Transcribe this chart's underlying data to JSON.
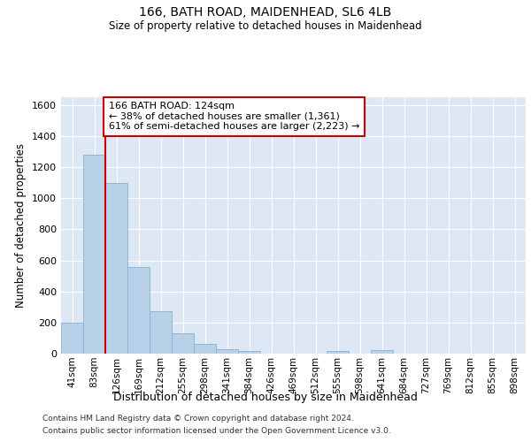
{
  "title1": "166, BATH ROAD, MAIDENHEAD, SL6 4LB",
  "title2": "Size of property relative to detached houses in Maidenhead",
  "xlabel": "Distribution of detached houses by size in Maidenhead",
  "ylabel": "Number of detached properties",
  "categories": [
    "41sqm",
    "83sqm",
    "126sqm",
    "169sqm",
    "212sqm",
    "255sqm",
    "298sqm",
    "341sqm",
    "384sqm",
    "426sqm",
    "469sqm",
    "512sqm",
    "555sqm",
    "598sqm",
    "641sqm",
    "684sqm",
    "727sqm",
    "769sqm",
    "812sqm",
    "855sqm",
    "898sqm"
  ],
  "values": [
    200,
    1280,
    1100,
    560,
    275,
    130,
    65,
    30,
    15,
    0,
    0,
    0,
    15,
    0,
    20,
    0,
    0,
    0,
    0,
    0,
    0
  ],
  "bar_color": "#b8d0e8",
  "bar_edge_color": "#8ab0d0",
  "property_line_color": "#cc0000",
  "annotation_text": "166 BATH ROAD: 124sqm\n← 38% of detached houses are smaller (1,361)\n61% of semi-detached houses are larger (2,223) →",
  "annotation_box_color": "#ffffff",
  "annotation_box_edge": "#cc0000",
  "ylim": [
    0,
    1650
  ],
  "yticks": [
    0,
    200,
    400,
    600,
    800,
    1000,
    1200,
    1400,
    1600
  ],
  "footnote1": "Contains HM Land Registry data © Crown copyright and database right 2024.",
  "footnote2": "Contains public sector information licensed under the Open Government Licence v3.0.",
  "bg_color": "#dde8f4",
  "fig_bg_color": "#ffffff",
  "grid_color": "#ffffff"
}
